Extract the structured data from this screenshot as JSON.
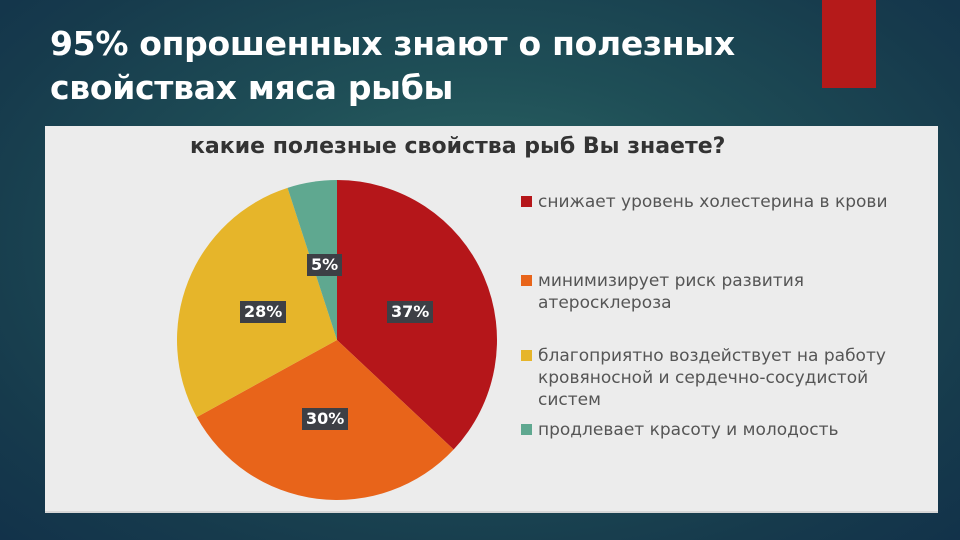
{
  "slide": {
    "title": "95% опрошенных знают о полезных свойствах мяса рыбы",
    "accent_color": "#b51a1a"
  },
  "chart_data": {
    "type": "pie",
    "title": "какие полезные свойства рыб Вы знаете?",
    "categories": [
      "снижает уровень холестерина в крови",
      "минимизирует риск развития атеросклероза",
      "благоприятно воздействует на работу кровяносной и сердечно-сосудистой систем",
      "продлевает красоту и молодость"
    ],
    "values": [
      37,
      30,
      28,
      5
    ],
    "labels": [
      "37%",
      "30%",
      "28%",
      "5%"
    ],
    "colors": [
      "#b5161a",
      "#e8641a",
      "#e6b52a",
      "#5fa890"
    ],
    "legend_position": "right",
    "start_angle": "12 o'clock, clockwise"
  },
  "legend": {
    "items": [
      {
        "label": "снижает уровень холестерина в крови",
        "color": "#b5161a"
      },
      {
        "label": "минимизирует риск развития атеросклероза",
        "color": "#e8641a"
      },
      {
        "label": "благоприятно воздействует на работу кровяносной и сердечно-сосудистой систем",
        "color": "#e6b52a"
      },
      {
        "label": "продлевает красоту и молодость",
        "color": "#5fa890"
      }
    ]
  }
}
